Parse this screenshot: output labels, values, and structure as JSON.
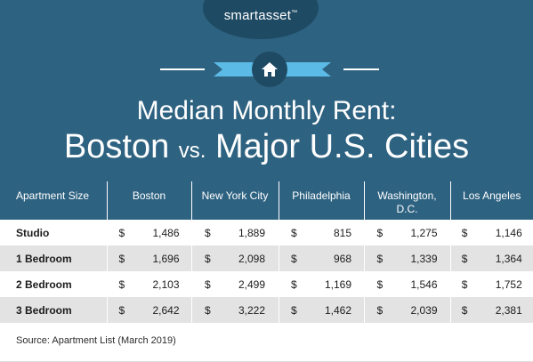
{
  "brand": {
    "name": "smartasset",
    "tm": "™"
  },
  "title": {
    "line1": "Median Monthly Rent:",
    "city": "Boston",
    "vs": "vs.",
    "rest": "Major U.S. Cities"
  },
  "chart_data": {
    "type": "table",
    "columns": [
      "Apartment Size",
      "Boston",
      "New York City",
      "Philadelphia",
      "Washington, D.C.",
      "Los Angeles"
    ],
    "rows": [
      {
        "label": "Studio",
        "values": [
          "1,486",
          "1,889",
          "815",
          "1,275",
          "1,146"
        ]
      },
      {
        "label": "1 Bedroom",
        "values": [
          "1,696",
          "2,098",
          "968",
          "1,339",
          "1,364"
        ]
      },
      {
        "label": "2 Bedroom",
        "values": [
          "2,103",
          "2,499",
          "1,169",
          "1,546",
          "1,752"
        ]
      },
      {
        "label": "3 Bedroom",
        "values": [
          "2,642",
          "3,222",
          "1,462",
          "2,039",
          "2,381"
        ]
      }
    ],
    "currency_symbol": "$"
  },
  "source": "Source: Apartment List (March 2019)",
  "colors": {
    "header_bg": "#2e6281",
    "oval": "#1f4a63",
    "ribbon": "#5bbbe6",
    "row_alt": "#e3e3e3"
  },
  "icons": {
    "house": "house-icon"
  }
}
